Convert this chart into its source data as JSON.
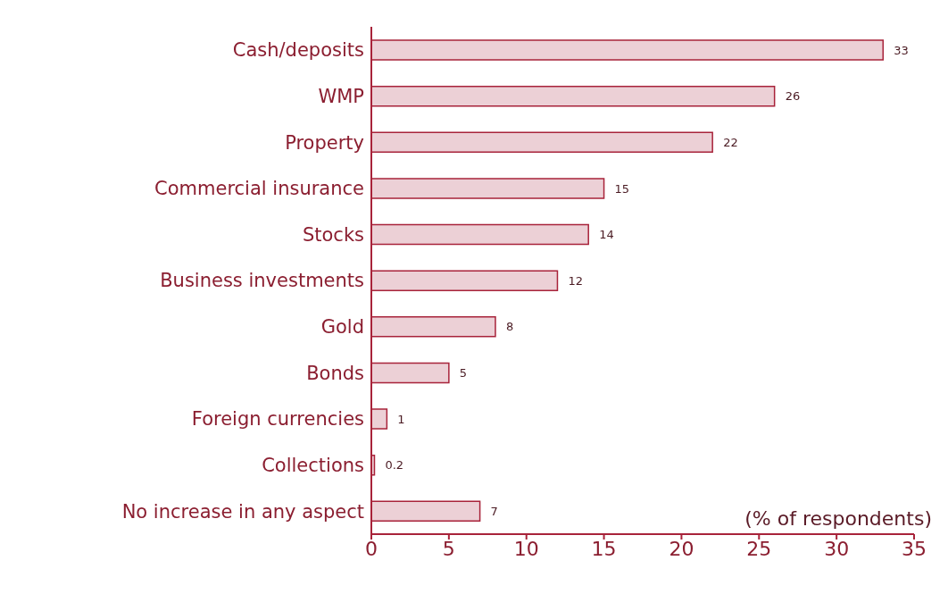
{
  "chart_data": {
    "type": "bar",
    "orientation": "horizontal",
    "categories": [
      "Cash/deposits",
      "WMP",
      "Property",
      "Commercial insurance",
      "Stocks",
      "Business investments",
      "Gold",
      "Bonds",
      "Foreign currencies",
      "Collections",
      "No increase in any aspect"
    ],
    "values": [
      33,
      26,
      22,
      15,
      14,
      12,
      8,
      5,
      1,
      0.2,
      7
    ],
    "color": "#ecd0d6",
    "xlim": [
      0,
      35
    ],
    "xticks": [
      0,
      5,
      10,
      15,
      20,
      25,
      30,
      35
    ],
    "data_labels": true,
    "grid": false,
    "annotations": [
      "(% of respondents)"
    ]
  }
}
